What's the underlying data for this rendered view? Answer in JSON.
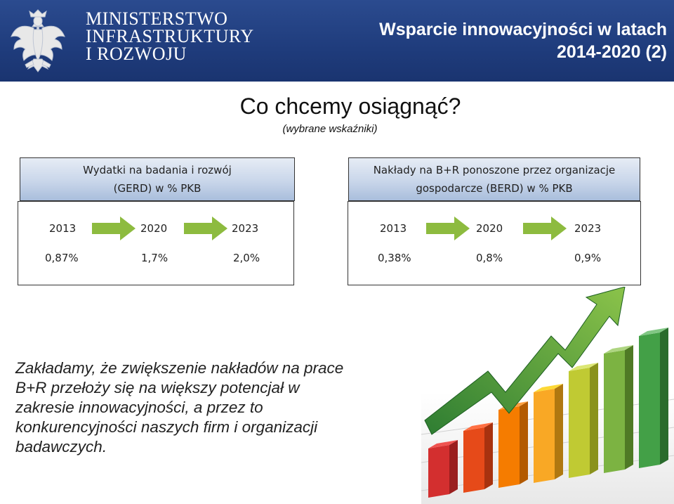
{
  "header": {
    "ministry_lines": [
      "MINISTERSTWO",
      "INFRASTRUKTURY",
      "I ROZWOJU"
    ],
    "title_line1": "Wsparcie innowacyjności w latach",
    "title_line2": "2014-2020 (2)",
    "emblem_icon": "polish-eagle-icon"
  },
  "heading": "Co chcemy osiągnąć?",
  "subheading": "(wybrane wskaźniki)",
  "gerd": {
    "title_line1": "Wydatki na badania i rozwój",
    "title_line2": "(GERD) w % PKB",
    "years": [
      "2013",
      "2020",
      "2023"
    ],
    "values": [
      "0,87%",
      "1,7%",
      "2,0%"
    ]
  },
  "berd": {
    "title_line1": "Nakłady na B+R ponoszone przez organizacje",
    "title_line2": "gospodarcze (BERD) w % PKB",
    "years": [
      "2013",
      "2020",
      "2023"
    ],
    "values": [
      "0,38%",
      "0,8%",
      "0,9%"
    ]
  },
  "conclusion_lines": [
    "Zakładamy, że zwiększenie nakładów na prace",
    "B+R przełoży się na większy potencjał w",
    "zakresie innowacyjności, a przez to",
    "konkurencyjności naszych firm i organizacji",
    "badawczych."
  ],
  "colors": {
    "header_bg": "#1f3c7c",
    "arrow_fill": "#8dbb3f",
    "box_header": "#c9d6ea"
  }
}
